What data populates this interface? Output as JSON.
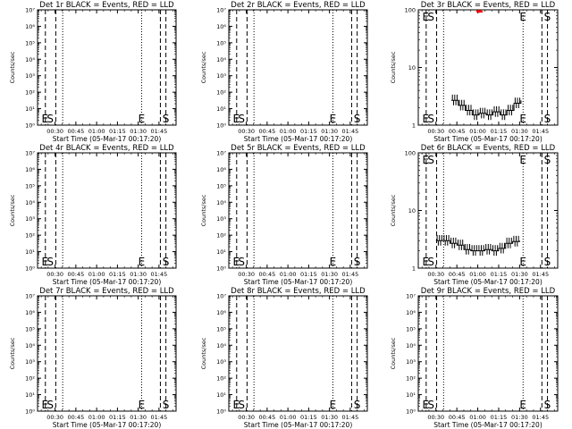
{
  "figure": {
    "xlabel": "Start Time (05-Mar-17 00:17:20)",
    "ylabel": "Counts/sec",
    "x_tick_labels": [
      "00:30",
      "00:45",
      "01:00",
      "01:15",
      "01:30",
      "01:45"
    ],
    "marker_labels": {
      "start": "S",
      "end": "E"
    }
  },
  "chart_data": [
    {
      "type": "line",
      "title": "Det 1r BLACK = Events, RED = LLD",
      "scale": "log",
      "ylim": [
        1,
        10000000
      ],
      "y_tick_labels": [
        "10⁰",
        "10¹",
        "10²",
        "10³",
        "10⁴",
        "10⁵",
        "10⁶",
        "10⁷"
      ],
      "series": []
    },
    {
      "type": "line",
      "title": "Det 2r BLACK = Events, RED = LLD",
      "scale": "log",
      "ylim": [
        1,
        10000000
      ],
      "y_tick_labels": [
        "10⁰",
        "10¹",
        "10²",
        "10³",
        "10⁴",
        "10⁵",
        "10⁶",
        "10⁷"
      ],
      "series": []
    },
    {
      "type": "line",
      "title": "Det 3r BLACK = Events, RED = LLD",
      "scale": "log",
      "ylim": [
        1,
        100
      ],
      "y_tick_labels": [
        "1",
        "10",
        "100"
      ],
      "series": [
        {
          "color": "#000000",
          "x": [
            "00:41",
            "00:46",
            "00:51",
            "00:56",
            "01:01",
            "01:06",
            "01:11",
            "01:16",
            "01:21",
            "01:26",
            "01:31"
          ],
          "y": [
            2.7,
            2.2,
            1.8,
            1.5,
            1.6,
            1.5,
            1.7,
            1.5,
            1.8,
            2.4,
            2.7
          ]
        },
        {
          "color": "#ff0000",
          "x": [
            "00:59",
            "01:00",
            "01:01",
            "01:02",
            "01:03"
          ],
          "y": [
            95,
            92,
            96,
            93,
            95
          ]
        }
      ]
    },
    {
      "type": "line",
      "title": "Det 4r BLACK = Events, RED = LLD",
      "scale": "log",
      "ylim": [
        1,
        10000000
      ],
      "y_tick_labels": [
        "10⁰",
        "10¹",
        "10²",
        "10³",
        "10⁴",
        "10⁵",
        "10⁶",
        "10⁷"
      ],
      "series": []
    },
    {
      "type": "line",
      "title": "Det 5r BLACK = Events, RED = LLD",
      "scale": "log",
      "ylim": [
        1,
        10000000
      ],
      "y_tick_labels": [
        "10⁰",
        "10¹",
        "10²",
        "10³",
        "10⁴",
        "10⁵",
        "10⁶",
        "10⁷"
      ],
      "series": []
    },
    {
      "type": "line",
      "title": "Det 6r BLACK = Events, RED = LLD",
      "scale": "log",
      "ylim": [
        1,
        100
      ],
      "y_tick_labels": [
        "1",
        "10",
        "100"
      ],
      "series": [
        {
          "color": "#000000",
          "x": [
            "00:30",
            "00:35",
            "00:40",
            "00:45",
            "00:50",
            "00:55",
            "01:00",
            "01:05",
            "01:10",
            "01:15",
            "01:20",
            "01:25",
            "01:30"
          ],
          "y": [
            3.0,
            3.0,
            2.7,
            2.5,
            2.1,
            2.0,
            2.0,
            2.1,
            2.0,
            2.2,
            2.7,
            2.9,
            3.0
          ]
        }
      ]
    },
    {
      "type": "line",
      "title": "Det 7r BLACK = Events, RED = LLD",
      "scale": "log",
      "ylim": [
        1,
        10000000
      ],
      "y_tick_labels": [
        "10⁰",
        "10¹",
        "10²",
        "10³",
        "10⁴",
        "10⁵",
        "10⁶",
        "10⁷"
      ],
      "series": []
    },
    {
      "type": "line",
      "title": "Det 8r BLACK = Events, RED = LLD",
      "scale": "log",
      "ylim": [
        1,
        10000000
      ],
      "y_tick_labels": [
        "10⁰",
        "10¹",
        "10²",
        "10³",
        "10⁴",
        "10⁵",
        "10⁶",
        "10⁷"
      ],
      "series": []
    },
    {
      "type": "line",
      "title": "Det 9r BLACK = Events, RED = LLD",
      "scale": "log",
      "ylim": [
        1,
        10000000
      ],
      "y_tick_labels": [
        "10⁰",
        "10¹",
        "10²",
        "10³",
        "10⁴",
        "10⁵",
        "10⁶",
        "10⁷"
      ],
      "series": []
    }
  ]
}
